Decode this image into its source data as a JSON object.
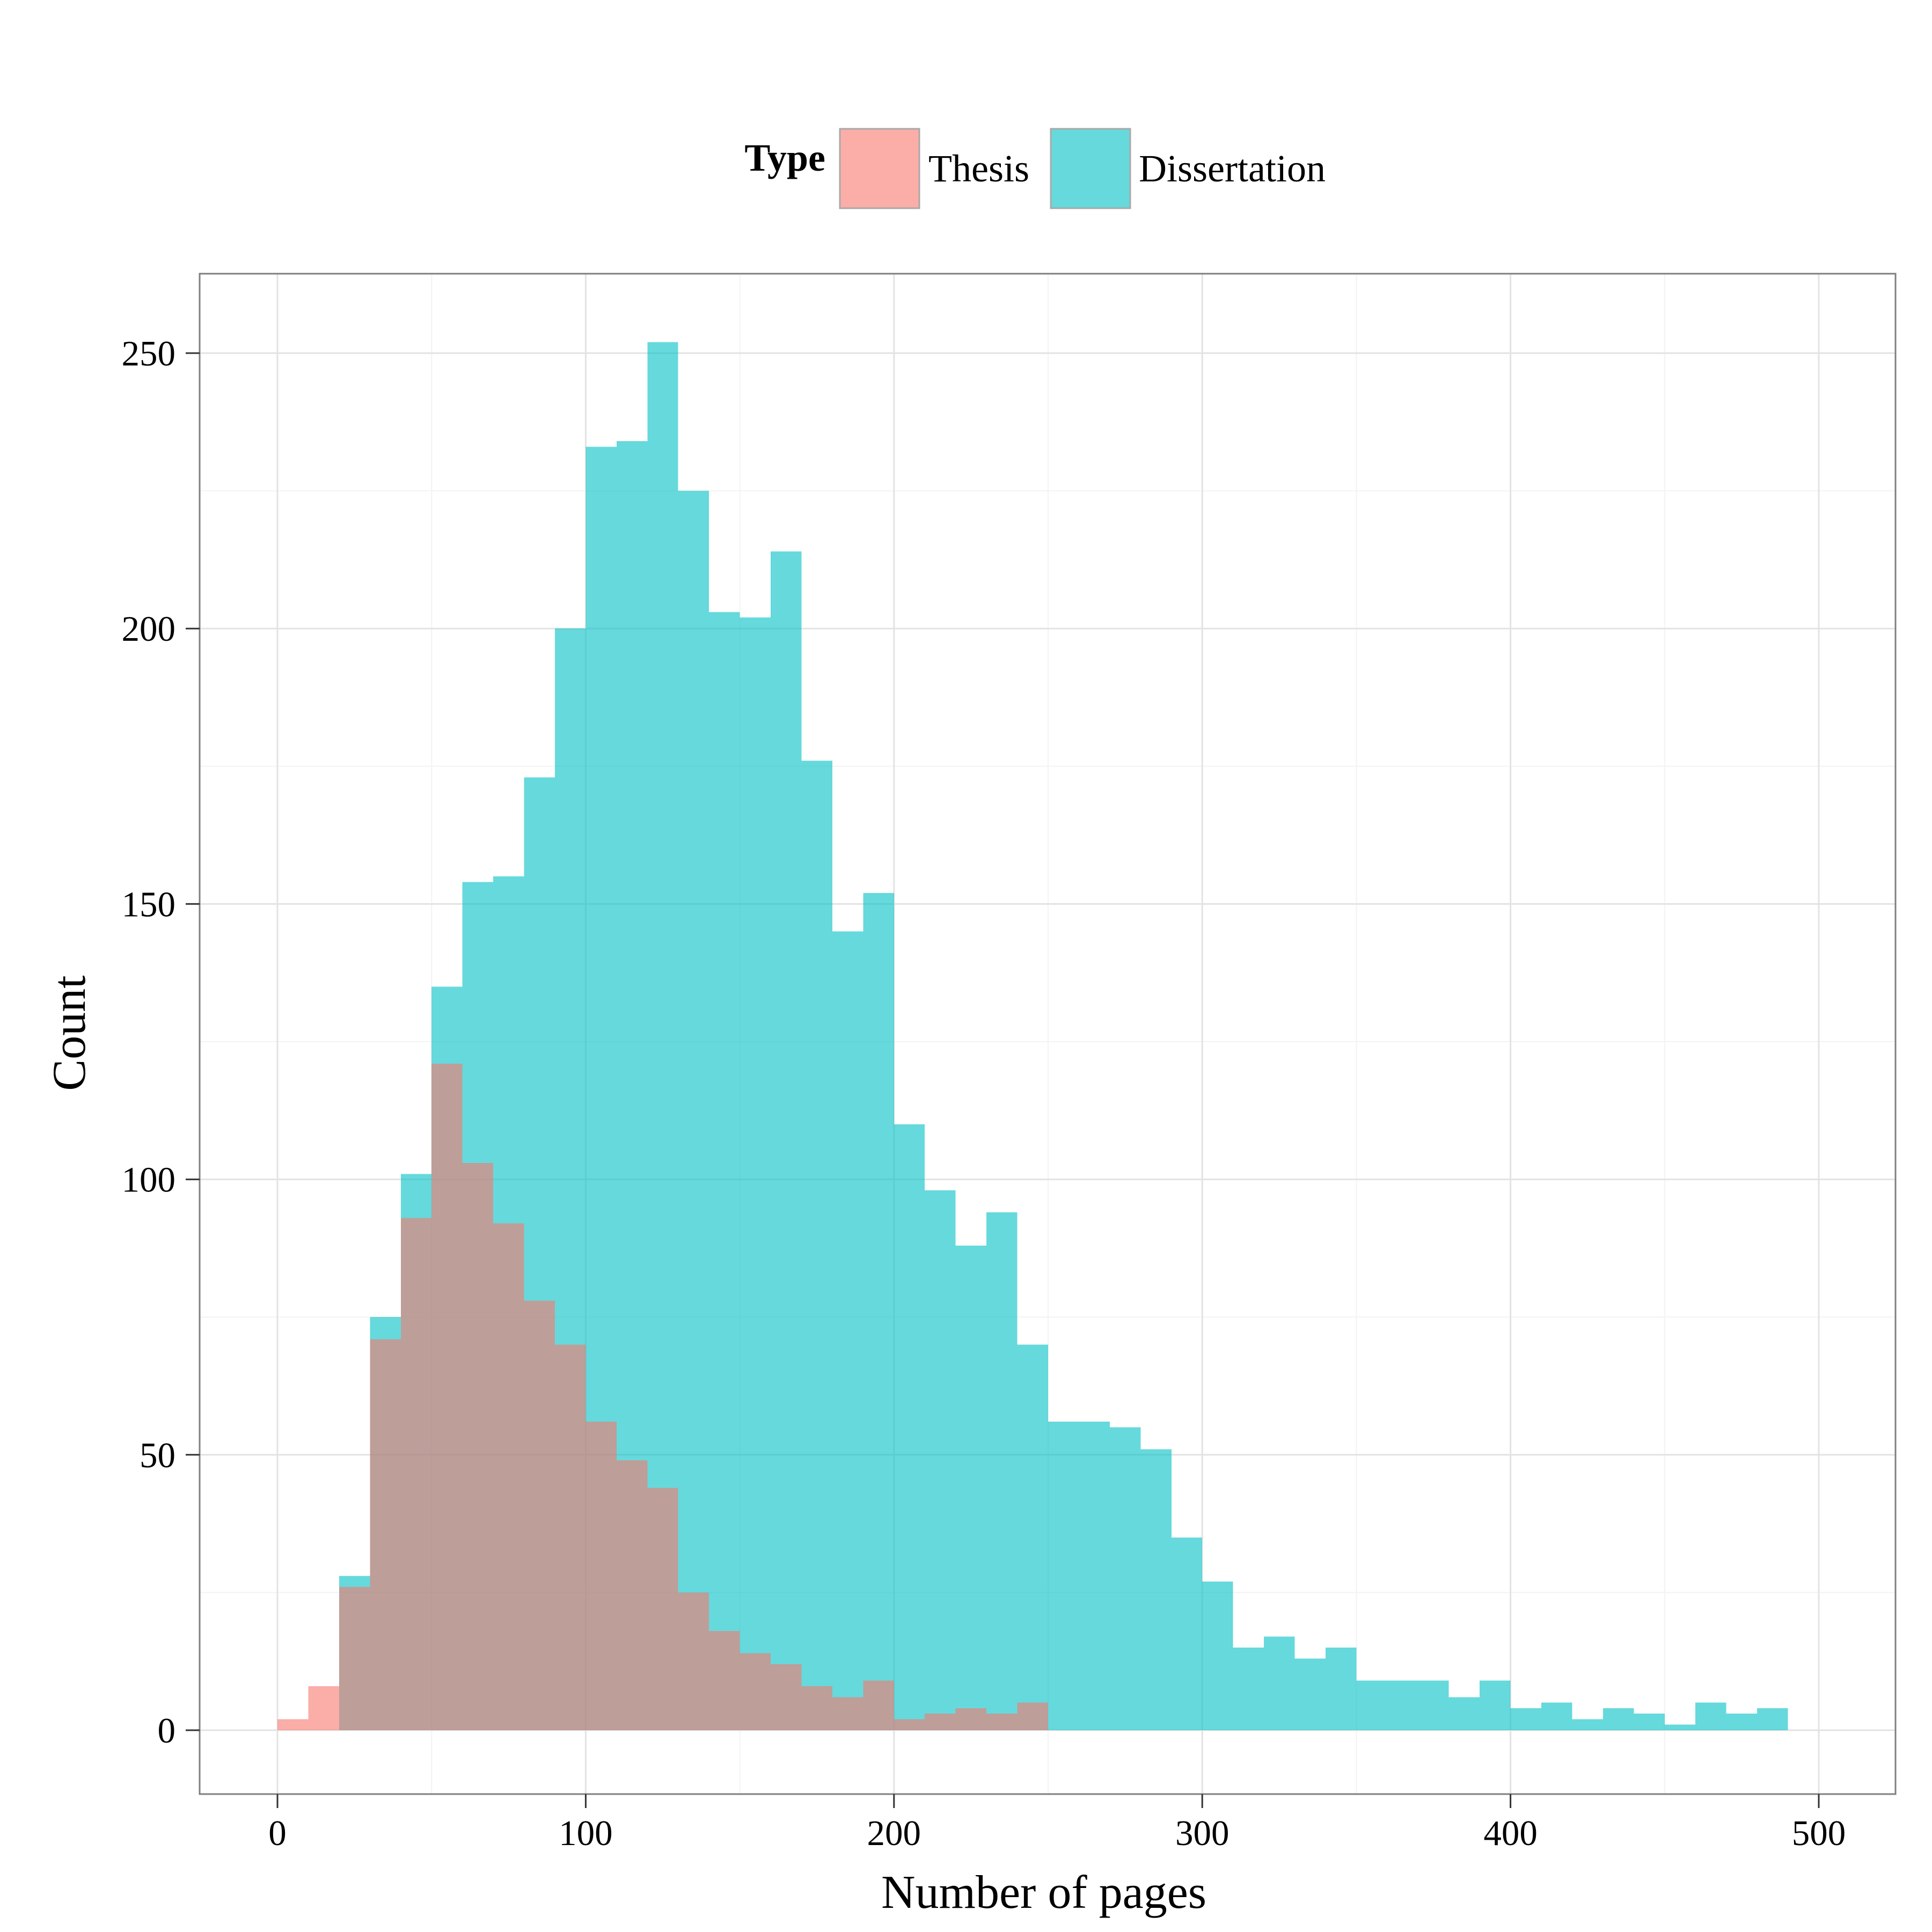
{
  "chart_data": {
    "type": "bar",
    "subtype": "overlaid histogram",
    "xlabel": "Number of pages",
    "ylabel": "Count",
    "xlim": [
      -25,
      515
    ],
    "ylim": [
      -12,
      265
    ],
    "xticks": [
      0,
      100,
      200,
      300,
      400,
      500
    ],
    "yticks": [
      0,
      50,
      100,
      150,
      200,
      250
    ],
    "bin_width": 10,
    "grid": true,
    "legend": {
      "title": "Type",
      "position": "top",
      "entries": [
        "Thesis",
        "Dissertation"
      ]
    },
    "colors": {
      "Thesis": "#F8766D",
      "Dissertation": "#00BFC4"
    },
    "bar_opacity": 0.6,
    "series": [
      {
        "name": "Thesis",
        "bin_starts": [
          0,
          10,
          20,
          30,
          40,
          50,
          60,
          70,
          80,
          90,
          100,
          110,
          120,
          130,
          140,
          150,
          160,
          170,
          180,
          190,
          200,
          210,
          220,
          230,
          240
        ],
        "values": [
          2,
          8,
          26,
          71,
          93,
          121,
          103,
          92,
          78,
          70,
          56,
          49,
          44,
          25,
          18,
          14,
          12,
          8,
          6,
          9,
          2,
          3,
          4,
          3,
          5
        ]
      },
      {
        "name": "Dissertation",
        "bin_starts": [
          20,
          30,
          40,
          50,
          60,
          70,
          80,
          90,
          100,
          110,
          120,
          130,
          140,
          150,
          160,
          170,
          180,
          190,
          200,
          210,
          220,
          230,
          240,
          250,
          260,
          270,
          280,
          290,
          300,
          310,
          320,
          330,
          340,
          350,
          360,
          370,
          380,
          390,
          400,
          410,
          420,
          430,
          440,
          450,
          460,
          470,
          480
        ],
        "values": [
          28,
          75,
          101,
          135,
          154,
          155,
          173,
          200,
          233,
          234,
          252,
          225,
          203,
          202,
          214,
          176,
          145,
          152,
          110,
          98,
          88,
          94,
          70,
          56,
          56,
          55,
          51,
          35,
          27,
          15,
          17,
          13,
          15,
          9,
          9,
          9,
          6,
          9,
          4,
          5,
          2,
          4,
          3,
          1,
          5,
          3,
          4
        ]
      }
    ]
  }
}
